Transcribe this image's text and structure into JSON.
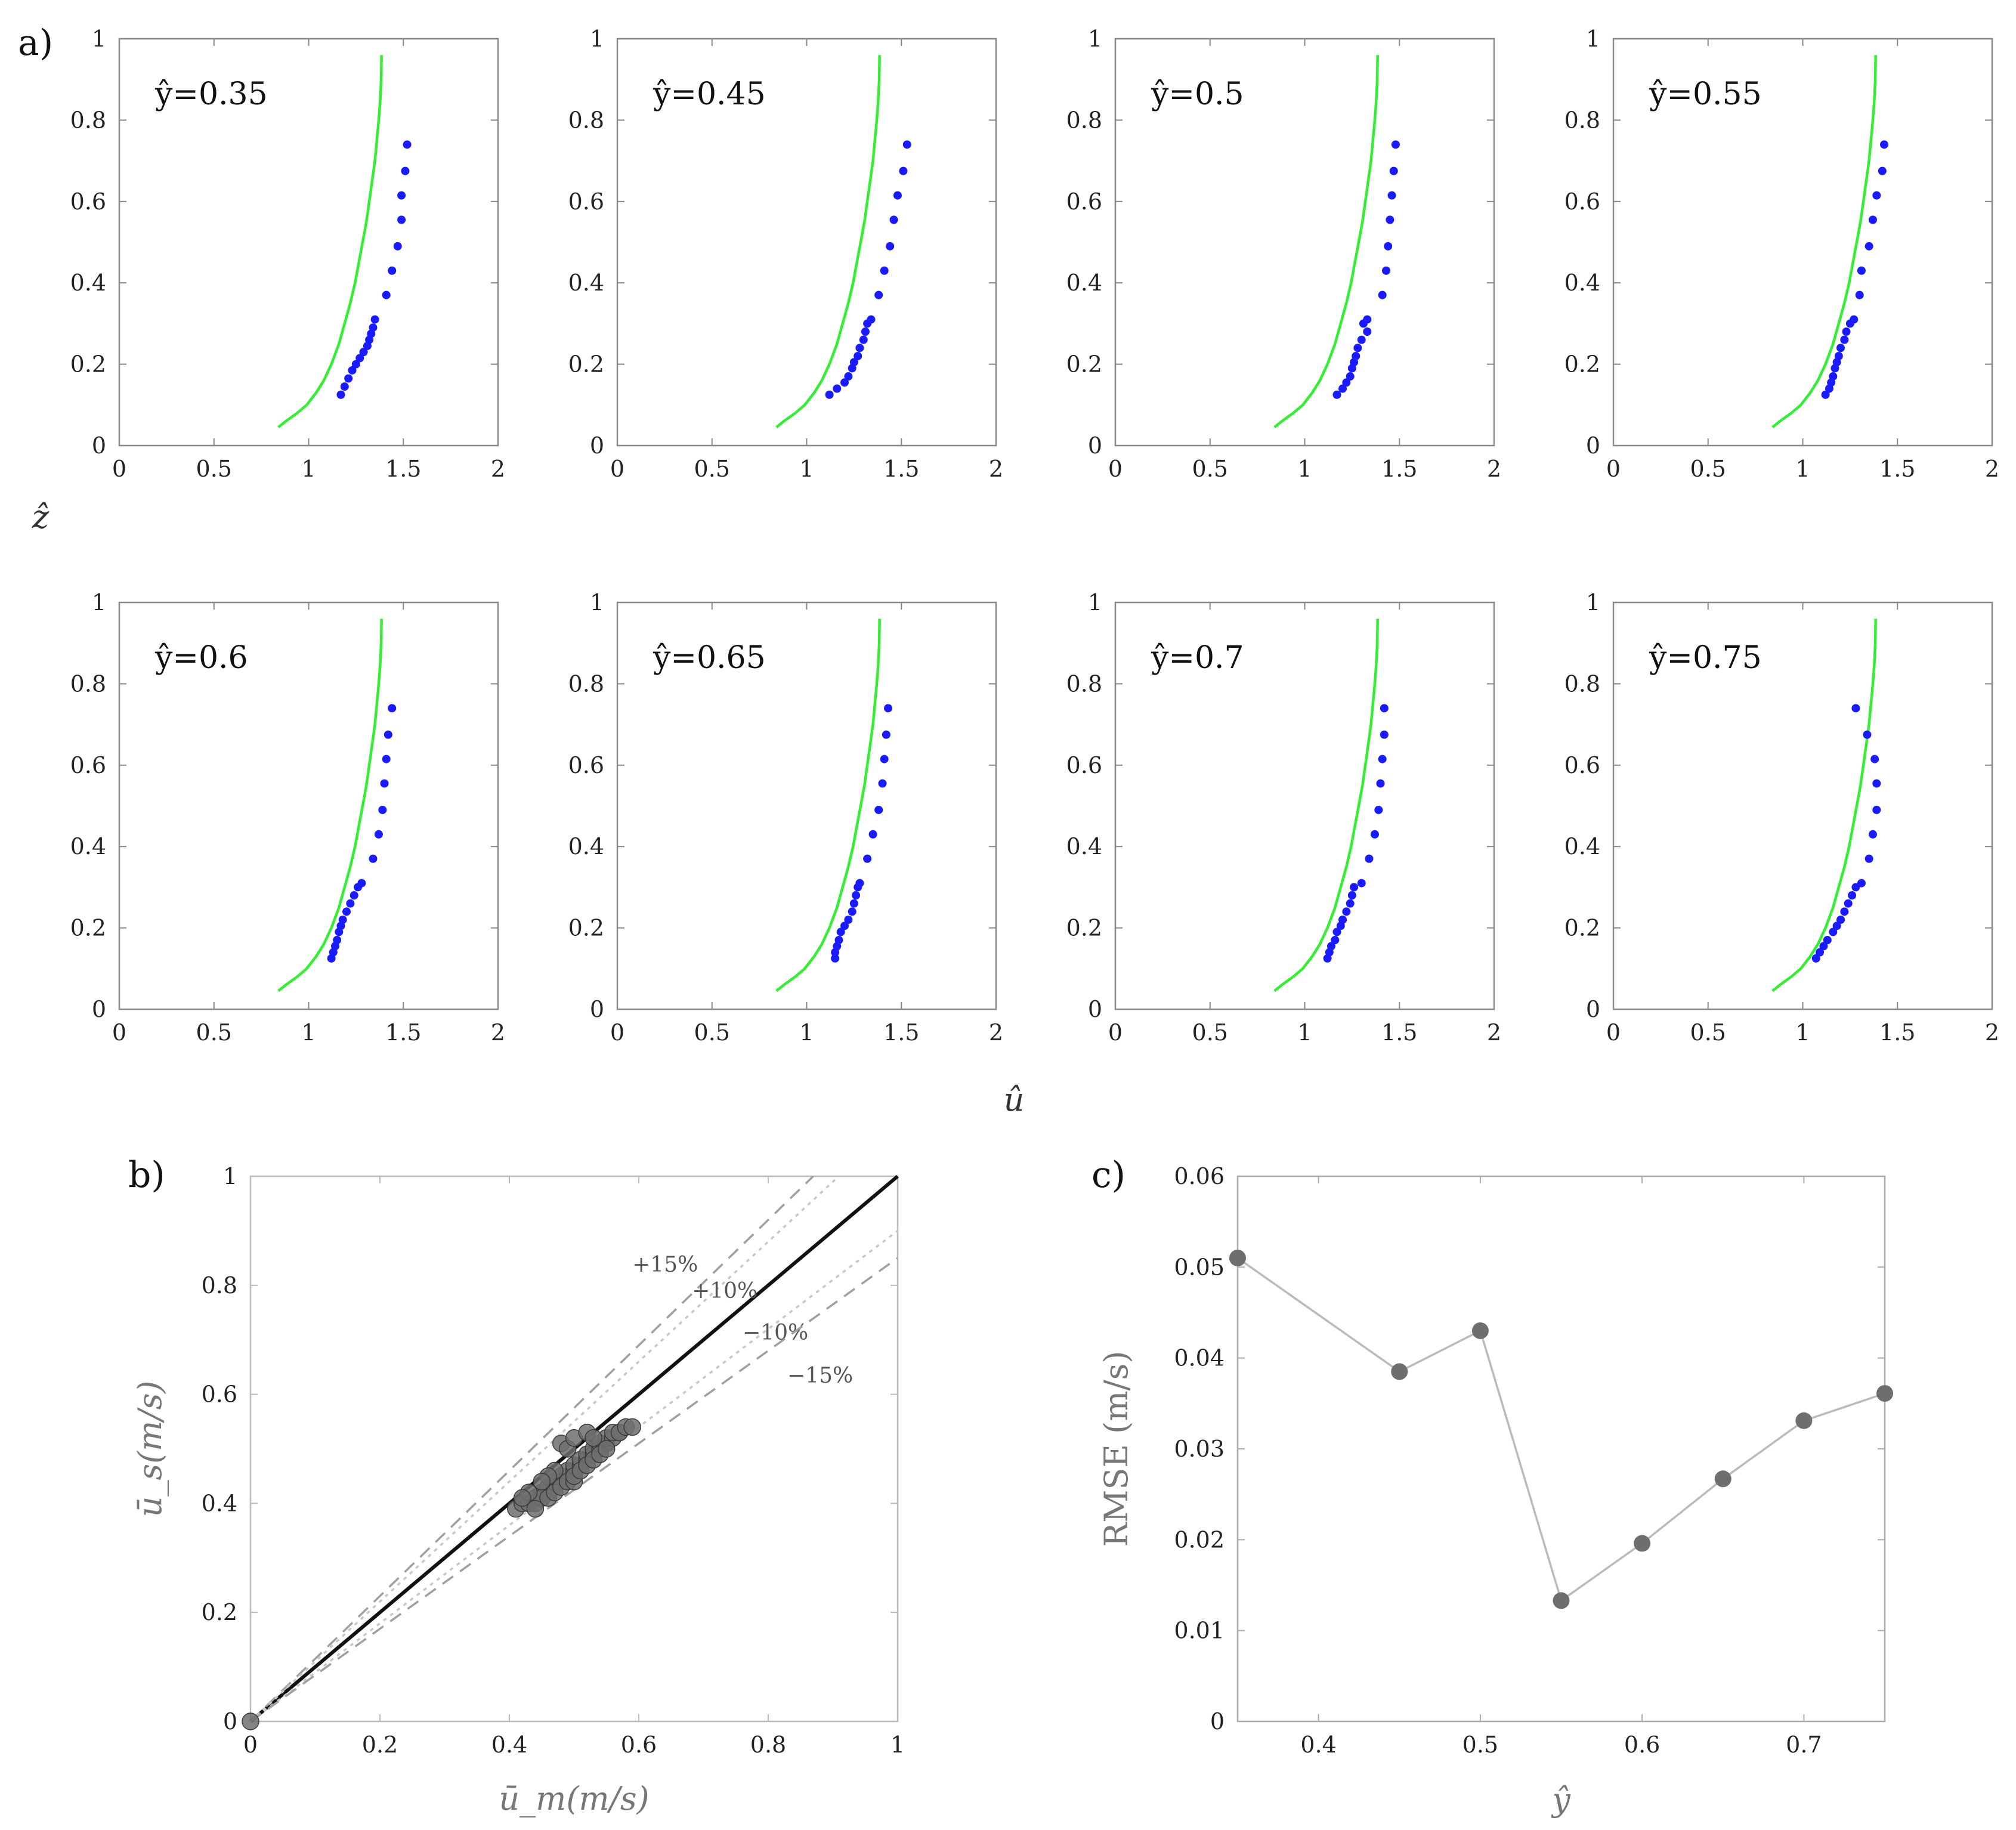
{
  "figure": {
    "panel_labels": [
      "a)",
      "b)",
      "c)"
    ],
    "a_shared_xlabel": "û",
    "a_shared_ylabel": "ẑ"
  },
  "colors": {
    "model_line": "#33ee33",
    "measured_points": "#1a1aff",
    "scatter_points": "#6e6e6e",
    "rmse_line": "#bbbbbb",
    "rmse_points": "#6e6e6e"
  },
  "chart_data": [
    {
      "id": "a",
      "type": "line+scatter",
      "xlim": [
        0,
        2
      ],
      "ylim": [
        0,
        1
      ],
      "xticks": [
        "0",
        "0.5",
        "1",
        "1.5",
        "2"
      ],
      "yticks": [
        "0",
        "0.2",
        "0.4",
        "0.6",
        "0.8",
        "1"
      ],
      "model_curve": {
        "name": "model",
        "z": [
          0.045,
          0.06,
          0.08,
          0.1,
          0.13,
          0.16,
          0.2,
          0.25,
          0.3,
          0.35,
          0.4,
          0.45,
          0.5,
          0.55,
          0.6,
          0.65,
          0.7,
          0.75,
          0.8,
          0.85,
          0.9,
          0.96
        ],
        "u": [
          0.84,
          0.88,
          0.94,
          0.99,
          1.04,
          1.08,
          1.12,
          1.16,
          1.19,
          1.22,
          1.245,
          1.265,
          1.285,
          1.305,
          1.32,
          1.335,
          1.35,
          1.36,
          1.37,
          1.378,
          1.383,
          1.385
        ]
      },
      "subplots": [
        {
          "title": "ŷ=0.35",
          "z": [
            0.125,
            0.145,
            0.165,
            0.185,
            0.2,
            0.215,
            0.23,
            0.245,
            0.26,
            0.275,
            0.29,
            0.31,
            0.37,
            0.43,
            0.49,
            0.555,
            0.615,
            0.675,
            0.74
          ],
          "u": [
            1.17,
            1.19,
            1.21,
            1.23,
            1.25,
            1.27,
            1.29,
            1.31,
            1.32,
            1.33,
            1.34,
            1.35,
            1.41,
            1.44,
            1.47,
            1.49,
            1.49,
            1.51,
            1.52
          ]
        },
        {
          "title": "ŷ=0.45",
          "z": [
            0.125,
            0.14,
            0.155,
            0.17,
            0.19,
            0.205,
            0.22,
            0.24,
            0.26,
            0.28,
            0.3,
            0.31,
            0.37,
            0.43,
            0.49,
            0.555,
            0.615,
            0.675,
            0.74
          ],
          "u": [
            1.12,
            1.16,
            1.2,
            1.22,
            1.24,
            1.25,
            1.27,
            1.28,
            1.3,
            1.31,
            1.32,
            1.34,
            1.38,
            1.41,
            1.44,
            1.46,
            1.48,
            1.51,
            1.53
          ]
        },
        {
          "title": "ŷ=0.5",
          "z": [
            0.125,
            0.14,
            0.155,
            0.17,
            0.19,
            0.205,
            0.22,
            0.24,
            0.26,
            0.28,
            0.3,
            0.31,
            0.37,
            0.43,
            0.49,
            0.555,
            0.615,
            0.675,
            0.74
          ],
          "u": [
            1.17,
            1.2,
            1.22,
            1.24,
            1.25,
            1.26,
            1.27,
            1.28,
            1.3,
            1.33,
            1.31,
            1.33,
            1.41,
            1.43,
            1.44,
            1.45,
            1.46,
            1.47,
            1.48
          ]
        },
        {
          "title": "ŷ=0.55",
          "z": [
            0.125,
            0.14,
            0.155,
            0.17,
            0.19,
            0.205,
            0.22,
            0.24,
            0.26,
            0.28,
            0.3,
            0.31,
            0.37,
            0.43,
            0.49,
            0.555,
            0.615,
            0.675,
            0.74
          ],
          "u": [
            1.12,
            1.14,
            1.15,
            1.16,
            1.17,
            1.18,
            1.19,
            1.2,
            1.22,
            1.23,
            1.25,
            1.27,
            1.3,
            1.31,
            1.35,
            1.37,
            1.39,
            1.42,
            1.43
          ]
        },
        {
          "title": "ŷ=0.6",
          "z": [
            0.125,
            0.14,
            0.155,
            0.17,
            0.19,
            0.205,
            0.22,
            0.24,
            0.26,
            0.28,
            0.3,
            0.31,
            0.37,
            0.43,
            0.49,
            0.555,
            0.615,
            0.675,
            0.74
          ],
          "u": [
            1.12,
            1.13,
            1.14,
            1.15,
            1.16,
            1.17,
            1.18,
            1.2,
            1.22,
            1.24,
            1.26,
            1.28,
            1.34,
            1.37,
            1.39,
            1.4,
            1.41,
            1.42,
            1.44
          ]
        },
        {
          "title": "ŷ=0.65",
          "z": [
            0.125,
            0.14,
            0.155,
            0.17,
            0.19,
            0.205,
            0.22,
            0.24,
            0.26,
            0.28,
            0.3,
            0.31,
            0.37,
            0.43,
            0.49,
            0.555,
            0.615,
            0.675,
            0.74
          ],
          "u": [
            1.15,
            1.15,
            1.16,
            1.17,
            1.18,
            1.2,
            1.22,
            1.24,
            1.25,
            1.26,
            1.27,
            1.28,
            1.32,
            1.35,
            1.38,
            1.4,
            1.41,
            1.42,
            1.43
          ]
        },
        {
          "title": "ŷ=0.7",
          "z": [
            0.125,
            0.14,
            0.155,
            0.17,
            0.19,
            0.205,
            0.22,
            0.24,
            0.26,
            0.28,
            0.3,
            0.31,
            0.37,
            0.43,
            0.49,
            0.555,
            0.615,
            0.675,
            0.74
          ],
          "u": [
            1.12,
            1.13,
            1.14,
            1.16,
            1.17,
            1.19,
            1.2,
            1.22,
            1.24,
            1.25,
            1.26,
            1.3,
            1.34,
            1.37,
            1.39,
            1.4,
            1.41,
            1.42,
            1.42
          ]
        },
        {
          "title": "ŷ=0.75",
          "z": [
            0.125,
            0.14,
            0.155,
            0.17,
            0.19,
            0.205,
            0.22,
            0.24,
            0.26,
            0.28,
            0.3,
            0.31,
            0.37,
            0.43,
            0.49,
            0.555,
            0.615,
            0.675,
            0.74
          ],
          "u": [
            1.07,
            1.09,
            1.11,
            1.13,
            1.16,
            1.18,
            1.2,
            1.22,
            1.24,
            1.26,
            1.28,
            1.31,
            1.35,
            1.37,
            1.39,
            1.39,
            1.38,
            1.34,
            1.28
          ]
        }
      ]
    },
    {
      "id": "b",
      "type": "scatter",
      "xlabel": "ū_m(m/s)",
      "ylabel": "ū_s(m/s)",
      "xlim": [
        0,
        1
      ],
      "ylim": [
        0,
        1
      ],
      "xticks": [
        "0",
        "0.2",
        "0.4",
        "0.6",
        "0.8",
        "1"
      ],
      "yticks": [
        "0",
        "0.2",
        "0.4",
        "0.6",
        "0.8",
        "1"
      ],
      "reference_lines": [
        {
          "label": "",
          "slope": 1.0
        },
        {
          "label": "+15%",
          "slope": 1.15
        },
        {
          "label": "+10%",
          "slope": 1.1
        },
        {
          "label": "−10%",
          "slope": 0.9
        },
        {
          "label": "−15%",
          "slope": 0.85
        }
      ],
      "points": {
        "x": [
          0.0,
          0.41,
          0.42,
          0.43,
          0.44,
          0.45,
          0.45,
          0.46,
          0.46,
          0.47,
          0.47,
          0.48,
          0.48,
          0.49,
          0.49,
          0.5,
          0.5,
          0.51,
          0.51,
          0.52,
          0.52,
          0.53,
          0.53,
          0.54,
          0.54,
          0.55,
          0.55,
          0.56,
          0.56,
          0.57,
          0.57,
          0.58,
          0.59,
          0.44,
          0.45,
          0.46,
          0.47,
          0.48,
          0.49,
          0.5,
          0.5,
          0.51,
          0.52,
          0.53,
          0.54,
          0.55,
          0.48,
          0.49,
          0.5,
          0.52,
          0.53,
          0.47,
          0.46,
          0.45,
          0.43,
          0.42,
          0.44
        ],
        "y": [
          0.0,
          0.39,
          0.4,
          0.4,
          0.41,
          0.41,
          0.42,
          0.42,
          0.43,
          0.43,
          0.44,
          0.44,
          0.45,
          0.45,
          0.46,
          0.46,
          0.47,
          0.47,
          0.48,
          0.48,
          0.49,
          0.49,
          0.5,
          0.5,
          0.51,
          0.51,
          0.52,
          0.52,
          0.53,
          0.53,
          0.53,
          0.54,
          0.54,
          0.4,
          0.41,
          0.41,
          0.42,
          0.43,
          0.44,
          0.44,
          0.45,
          0.46,
          0.47,
          0.48,
          0.49,
          0.5,
          0.51,
          0.5,
          0.52,
          0.53,
          0.52,
          0.46,
          0.45,
          0.44,
          0.42,
          0.41,
          0.39
        ]
      }
    },
    {
      "id": "c",
      "type": "line",
      "xlabel": "ŷ",
      "ylabel": "RMSE (m/s)",
      "xlim": [
        0.35,
        0.75
      ],
      "ylim": [
        0,
        0.06
      ],
      "xticks": [
        "0.4",
        "0.5",
        "0.6",
        "0.7"
      ],
      "yticks": [
        "0",
        "0.01",
        "0.02",
        "0.03",
        "0.04",
        "0.05",
        "0.06"
      ],
      "x": [
        0.35,
        0.45,
        0.5,
        0.55,
        0.6,
        0.65,
        0.7,
        0.75
      ],
      "y": [
        0.051,
        0.0385,
        0.043,
        0.0133,
        0.0196,
        0.0267,
        0.0331,
        0.0361
      ]
    }
  ]
}
